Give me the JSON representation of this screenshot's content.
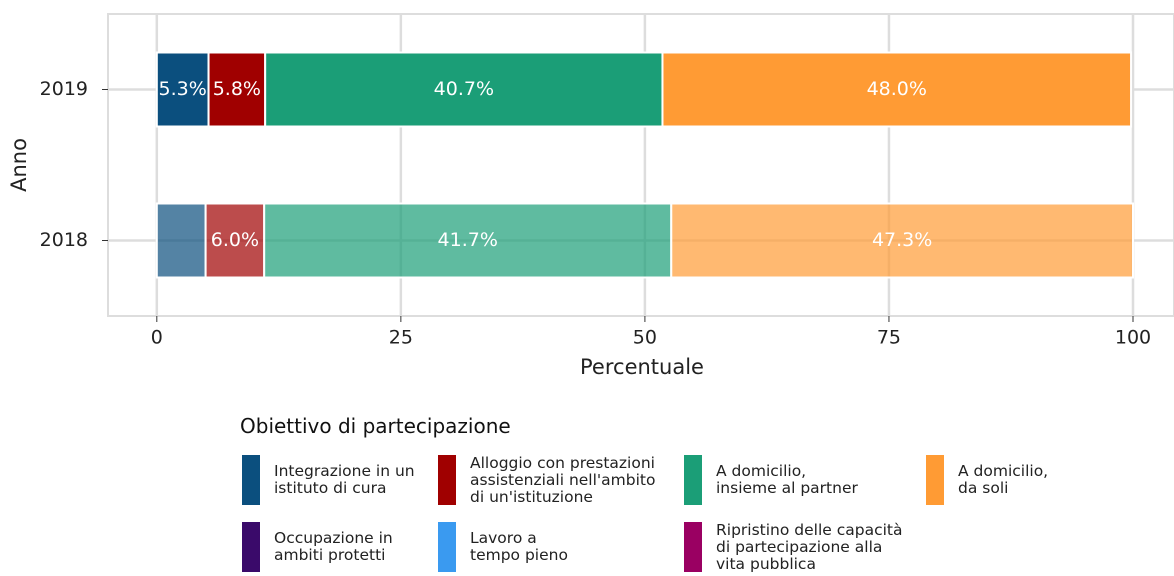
{
  "chart_data": {
    "type": "stacked-barh",
    "categories": [
      "2019",
      "2018"
    ],
    "series": [
      {
        "name": "Integrazione in un\nistituto di cura",
        "color": "#0b4f7e",
        "values": [
          5.3,
          5.0
        ],
        "value_labels": [
          "5.3%",
          null
        ]
      },
      {
        "name": "Alloggio con prestazioni\nassistenziali nell'ambito\ndi un'istituzione",
        "color": "#a00000",
        "values": [
          5.8,
          6.0
        ],
        "value_labels": [
          "5.8%",
          "6.0%"
        ]
      },
      {
        "name": "A domicilio,\ninsieme al partner",
        "color": "#1b9e77",
        "values": [
          40.7,
          41.7
        ],
        "value_labels": [
          "40.7%",
          "41.7%"
        ]
      },
      {
        "name": "A domicilio,\nda soli",
        "color": "#ff9b34",
        "values": [
          48.0,
          47.3
        ],
        "value_labels": [
          "48.0%",
          "47.3%"
        ]
      },
      {
        "name": "Occupazione in\nambiti protetti",
        "color": "#3a0a6a",
        "values": [
          0,
          0
        ],
        "value_labels": [
          null,
          null
        ]
      },
      {
        "name": "Lavoro a\ntempo pieno",
        "color": "#3a9af0",
        "values": [
          0,
          0
        ],
        "value_labels": [
          null,
          null
        ]
      },
      {
        "name": "Ripristino delle capacità\ndi partecipazione alla\nvita pubblica",
        "color": "#9a0062",
        "values": [
          0,
          0
        ],
        "value_labels": [
          null,
          null
        ]
      }
    ],
    "category_opacity": [
      1,
      0.7
    ],
    "xlim": [
      -5,
      104.2
    ],
    "xticks": [
      0,
      25,
      50,
      75,
      100
    ],
    "grid": true,
    "x_label": "Percentuale",
    "y_label": "Anno",
    "legend_title": "Obiettivo di partecipazione",
    "legend_position": "bottom"
  }
}
